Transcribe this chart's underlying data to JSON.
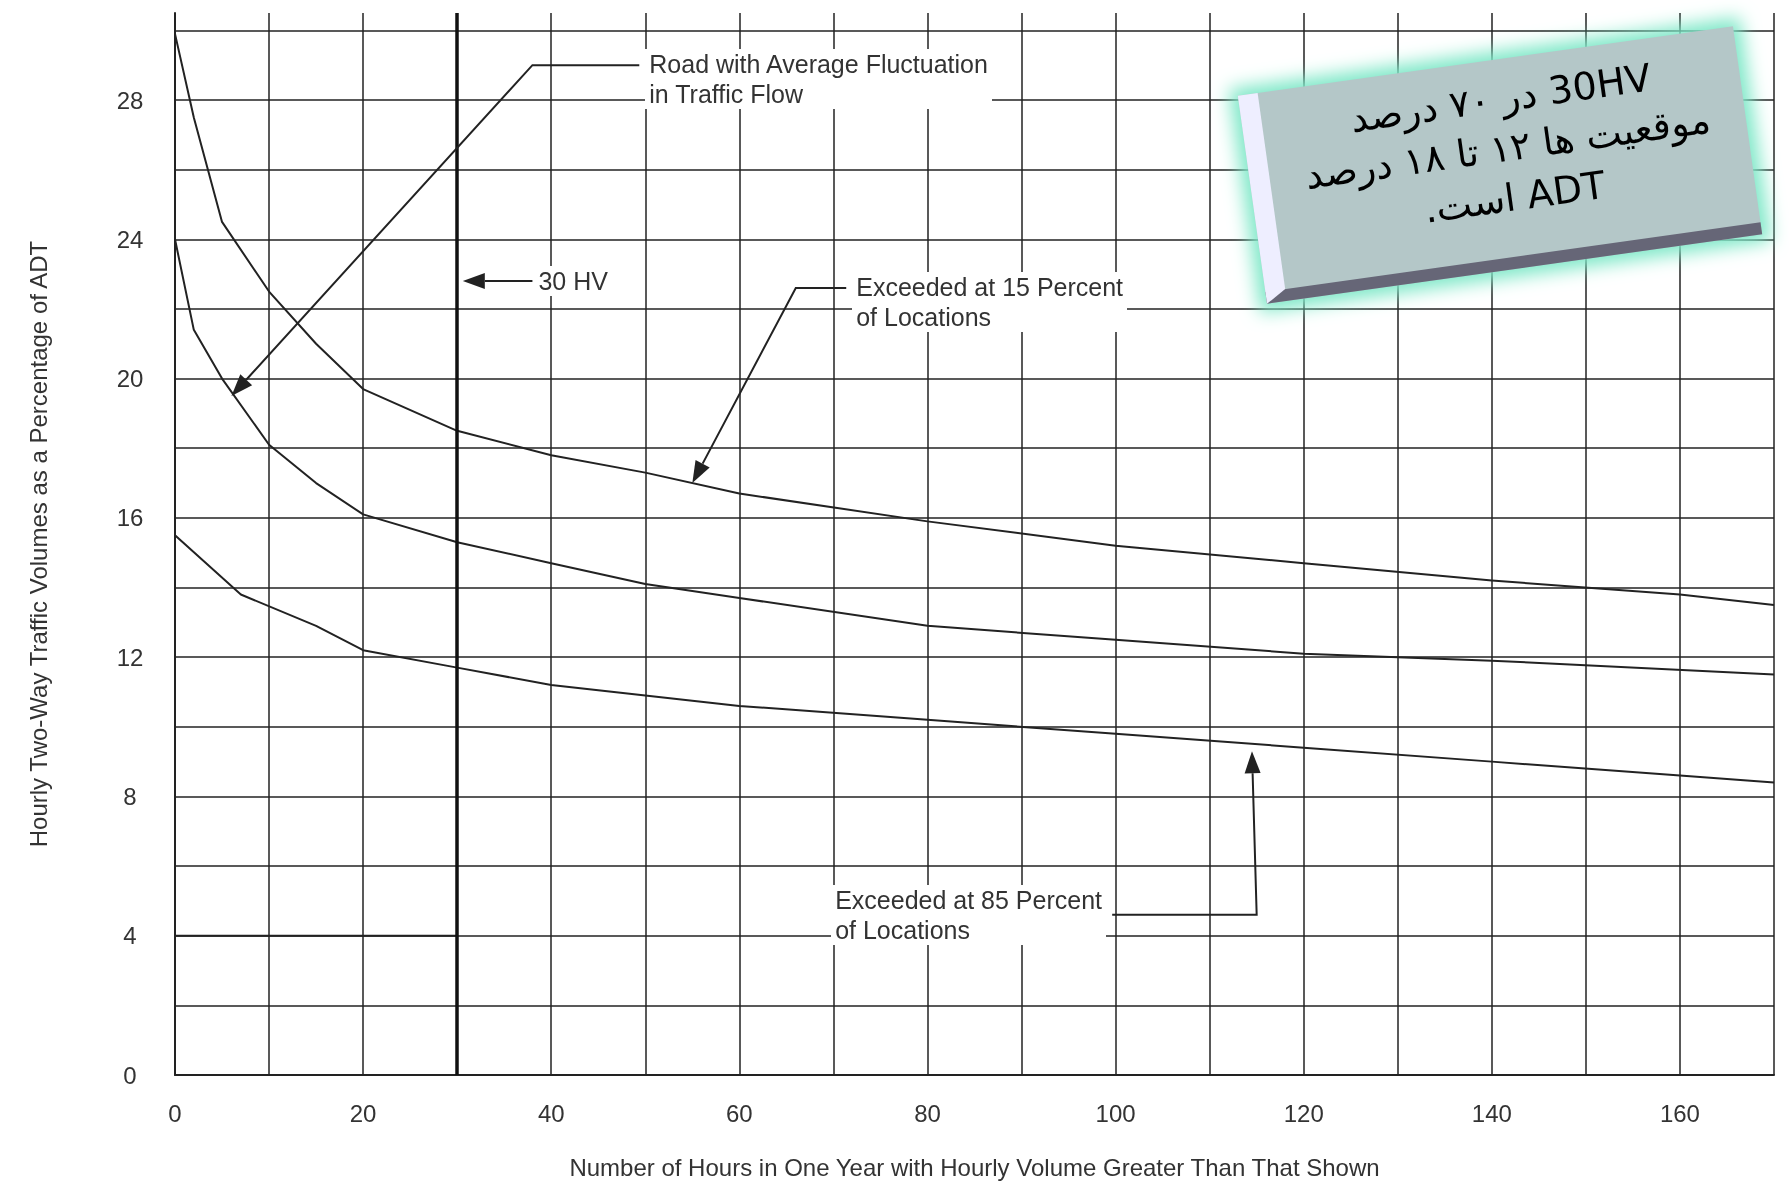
{
  "chart_data": {
    "type": "line",
    "xlabel": "Number of Hours in One Year with Hourly Volume Greater Than That Shown",
    "ylabel": "Hourly Two-Way Traffic Volumes as a Percentage of ADT",
    "xlim": [
      0,
      170
    ],
    "ylim": [
      0,
      30.5
    ],
    "xticks": [
      0,
      {
        "value": 10,
        "label": null
      },
      20,
      {
        "value": 30,
        "label": null
      },
      40,
      {
        "value": 50,
        "label": null
      },
      60,
      {
        "value": 70,
        "label": null
      },
      80,
      {
        "value": 90,
        "label": null
      },
      100,
      {
        "value": 110,
        "label": null
      },
      120,
      {
        "value": 130,
        "label": null
      },
      140,
      {
        "value": 150,
        "label": null
      },
      160,
      {
        "value": 170,
        "label": null
      }
    ],
    "yticks": [
      0,
      {
        "value": 2,
        "label": null
      },
      4,
      {
        "value": 6,
        "label": null
      },
      8,
      {
        "value": 10,
        "label": null
      },
      12,
      {
        "value": 14,
        "label": null
      },
      16,
      {
        "value": 18,
        "label": null
      },
      20,
      {
        "value": 22,
        "label": null
      },
      24,
      {
        "value": 26,
        "label": null
      },
      28,
      {
        "value": 30,
        "label": null
      }
    ],
    "grid": true,
    "marker": "none",
    "line_style": "solid",
    "series": [
      {
        "color": "#222222",
        "x": [
          0,
          2,
          5,
          10,
          15,
          20,
          30,
          40,
          50,
          60,
          80,
          100,
          120,
          140,
          160,
          170
        ],
        "values": [
          29.9,
          27.5,
          24.5,
          22.5,
          21,
          19.7,
          18.5,
          17.8,
          17.3,
          16.7,
          15.9,
          15.2,
          14.7,
          14.2,
          13.8,
          13.5
        ]
      },
      {
        "color": "#222222",
        "x": [
          0,
          2,
          5,
          10,
          15,
          20,
          30,
          40,
          50,
          60,
          80,
          100,
          120,
          140,
          170
        ],
        "values": [
          24,
          21.4,
          20,
          18.1,
          17,
          16.1,
          15.3,
          14.7,
          14.1,
          13.7,
          12.9,
          12.5,
          12.1,
          11.9,
          11.5
        ]
      },
      {
        "color": "#222222",
        "x": [
          0,
          7,
          15,
          20,
          30,
          40,
          60,
          80,
          100,
          120,
          140,
          160,
          170
        ],
        "values": [
          15.5,
          13.8,
          12.9,
          12.2,
          11.7,
          11.2,
          10.6,
          10.2,
          9.8,
          9.4,
          9.0,
          8.6,
          8.4
        ]
      },
      {
        "color": "#222222",
        "x": [
          0,
          30
        ],
        "values": [
          4,
          4
        ]
      }
    ],
    "ref_lines": [
      {
        "axis": "x",
        "value": 30,
        "label": "30 HV",
        "color": "#111111"
      }
    ],
    "annotations": [
      "Road with Average Fluctuation\nin Traffic Flow",
      "Exceeded at 15 Percent\nof Locations",
      "Exceeded at 85 Percent\nof Locations",
      "30HV در ۷۰ درصد موقعیت ها ۱۲ تا ۱۸ درصد ADT است."
    ]
  }
}
